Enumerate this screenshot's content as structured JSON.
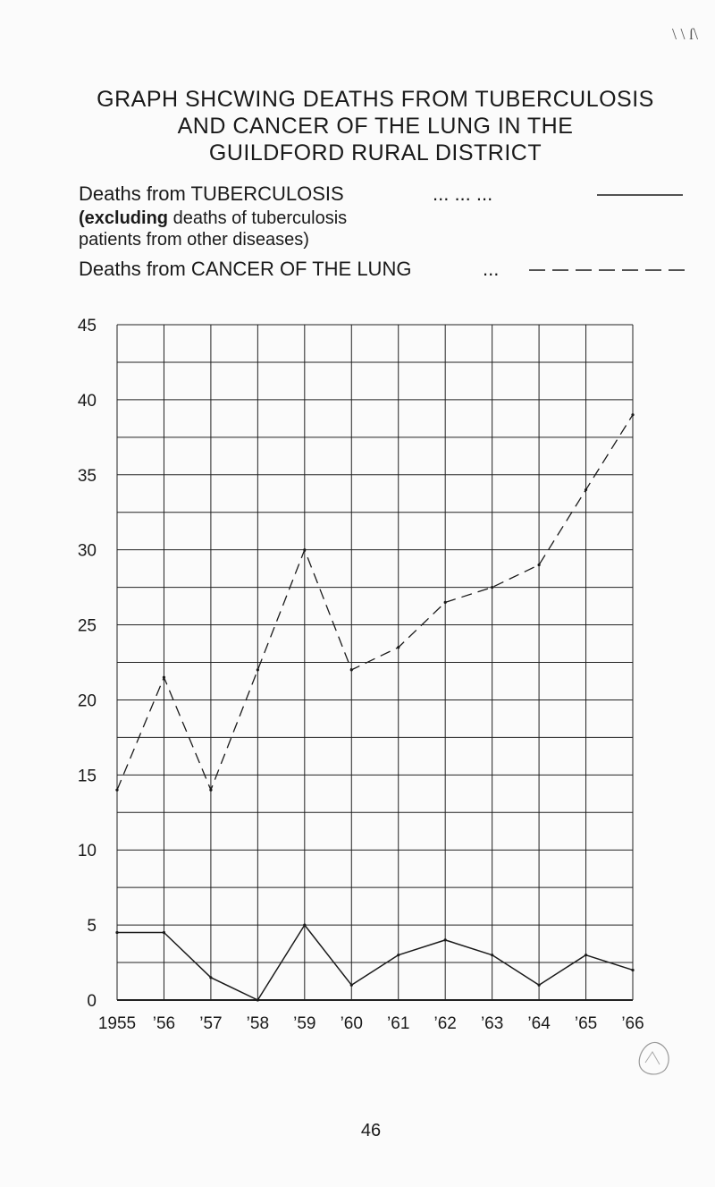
{
  "page": {
    "corner_mark": "\\ \\ ſ\\",
    "page_number": "46"
  },
  "title_lines": [
    "GRAPH SHCWING DEATHS FROM TUBERCULOSIS",
    "AND CANCER OF THE LUNG IN THE",
    "GUILDFORD RURAL DISTRICT"
  ],
  "legend": {
    "tb_label": "Deaths from TUBERCULOSIS",
    "tb_dots": "... ... ...",
    "tb_note_bold": "(excluding",
    "tb_note_rest": " deaths of tuberculosis",
    "tb_note_line2": "patients from other diseases)",
    "cancer_label": "Deaths from CANCER OF THE LUNG",
    "cancer_dots": "...",
    "tb_line_style": "solid",
    "cancer_line_style": "dashed"
  },
  "chart_data": {
    "type": "line",
    "title": "GRAPH SHCWING DEATHS FROM TUBERCULOSIS AND CANCER OF THE LUNG IN THE GUILDFORD RURAL DISTRICT",
    "x": [
      1955,
      1956,
      1957,
      1958,
      1959,
      1960,
      1961,
      1962,
      1963,
      1964,
      1965,
      1966
    ],
    "x_tick_labels": [
      "1955",
      "’56",
      "’57",
      "’58",
      "’59",
      "’60",
      "’61",
      "’62",
      "’63",
      "’64",
      "’65",
      "’66"
    ],
    "y_ticks": [
      0,
      5,
      10,
      15,
      20,
      25,
      30,
      35,
      40,
      45
    ],
    "ylim": [
      0,
      45
    ],
    "xlim": [
      1955,
      1966
    ],
    "grid": true,
    "grid_y_step": 2.5,
    "series": [
      {
        "key": "tuberculosis",
        "style": "solid",
        "color": "#1a1a1a",
        "values": [
          4.5,
          4.5,
          1.5,
          0,
          5,
          1,
          3,
          4,
          3,
          1,
          3,
          2
        ]
      },
      {
        "key": "cancer",
        "style": "dashed",
        "color": "#1a1a1a",
        "values": [
          14,
          21.5,
          14,
          22,
          30,
          22,
          23.5,
          26.5,
          27.5,
          29,
          34,
          39
        ]
      }
    ]
  }
}
